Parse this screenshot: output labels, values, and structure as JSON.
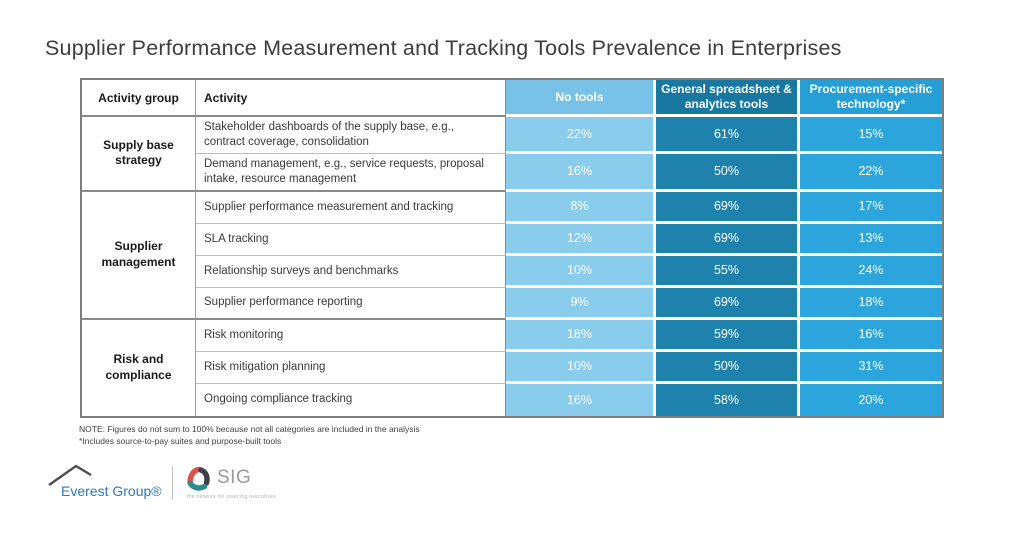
{
  "title": "Supplier Performance Measurement and Tracking Tools Prevalence in Enterprises",
  "table": {
    "headers": [
      "Activity group",
      "Activity",
      "No tools",
      "General spreadsheet & analytics tools",
      "Procurement-specific technology*"
    ],
    "groups": [
      {
        "name": "Supply base strategy",
        "rows": [
          {
            "activity": "Stakeholder dashboards of the supply base, e.g., contract coverage, consolidation",
            "no_tools": "22%",
            "spreadsheet": "61%",
            "procurement": "15%"
          },
          {
            "activity": "Demand management, e.g., service requests, proposal intake, resource management",
            "no_tools": "16%",
            "spreadsheet": "50%",
            "procurement": "22%"
          }
        ]
      },
      {
        "name": "Supplier management",
        "rows": [
          {
            "activity": "Supplier performance measurement and tracking",
            "no_tools": "8%",
            "spreadsheet": "69%",
            "procurement": "17%"
          },
          {
            "activity": "SLA tracking",
            "no_tools": "12%",
            "spreadsheet": "69%",
            "procurement": "13%"
          },
          {
            "activity": "Relationship surveys and benchmarks",
            "no_tools": "10%",
            "spreadsheet": "55%",
            "procurement": "24%"
          },
          {
            "activity": "Supplier performance reporting",
            "no_tools": "9%",
            "spreadsheet": "69%",
            "procurement": "18%"
          }
        ]
      },
      {
        "name": "Risk and compliance",
        "rows": [
          {
            "activity": "Risk monitoring",
            "no_tools": "18%",
            "spreadsheet": "59%",
            "procurement": "16%"
          },
          {
            "activity": "Risk mitigation planning",
            "no_tools": "10%",
            "spreadsheet": "50%",
            "procurement": "31%"
          },
          {
            "activity": "Ongoing compliance tracking",
            "no_tools": "16%",
            "spreadsheet": "58%",
            "procurement": "20%"
          }
        ]
      }
    ]
  },
  "notes": {
    "line1": "NOTE: Figures do not sum to 100% because not all categories are included in the analysis",
    "line2": "*Includes source-to-pay suites and purpose-built tools"
  },
  "footer": {
    "everest_label": "Everest Group®",
    "sig_label": "SIG",
    "sig_tagline": "the network for sourcing executives"
  },
  "colors": {
    "no_tools_column": "#8accec",
    "spreadsheet_column": "#1f82ac",
    "procurement_column": "#2ca5dd",
    "title_text": "#3d3d3d",
    "everest_blue": "#2e79b9",
    "sig_red": "#d9534a",
    "sig_teal": "#2c8c8e",
    "sig_dark": "#3c4148"
  },
  "chart_data": {
    "type": "table",
    "title": "Supplier Performance Measurement and Tracking Tools Prevalence in Enterprises",
    "columns": [
      "Activity group",
      "Activity",
      "No tools",
      "General spreadsheet & analytics tools",
      "Procurement-specific technology*"
    ],
    "units": "%",
    "rows": [
      [
        "Supply base strategy",
        "Stakeholder dashboards of the supply base, e.g., contract coverage, consolidation",
        22,
        61,
        15
      ],
      [
        "Supply base strategy",
        "Demand management, e.g., service requests, proposal intake, resource management",
        16,
        50,
        22
      ],
      [
        "Supplier management",
        "Supplier performance measurement and tracking",
        8,
        69,
        17
      ],
      [
        "Supplier management",
        "SLA tracking",
        12,
        69,
        13
      ],
      [
        "Supplier management",
        "Relationship surveys and benchmarks",
        10,
        55,
        24
      ],
      [
        "Supplier management",
        "Supplier performance reporting",
        9,
        69,
        18
      ],
      [
        "Risk and compliance",
        "Risk monitoring",
        18,
        59,
        16
      ],
      [
        "Risk and compliance",
        "Risk mitigation planning",
        10,
        50,
        31
      ],
      [
        "Risk and compliance",
        "Ongoing compliance tracking",
        16,
        58,
        20
      ]
    ],
    "notes": [
      "NOTE: Figures do not sum to 100% because not all categories are included in the analysis",
      "*Includes source-to-pay suites and purpose-built tools"
    ]
  }
}
